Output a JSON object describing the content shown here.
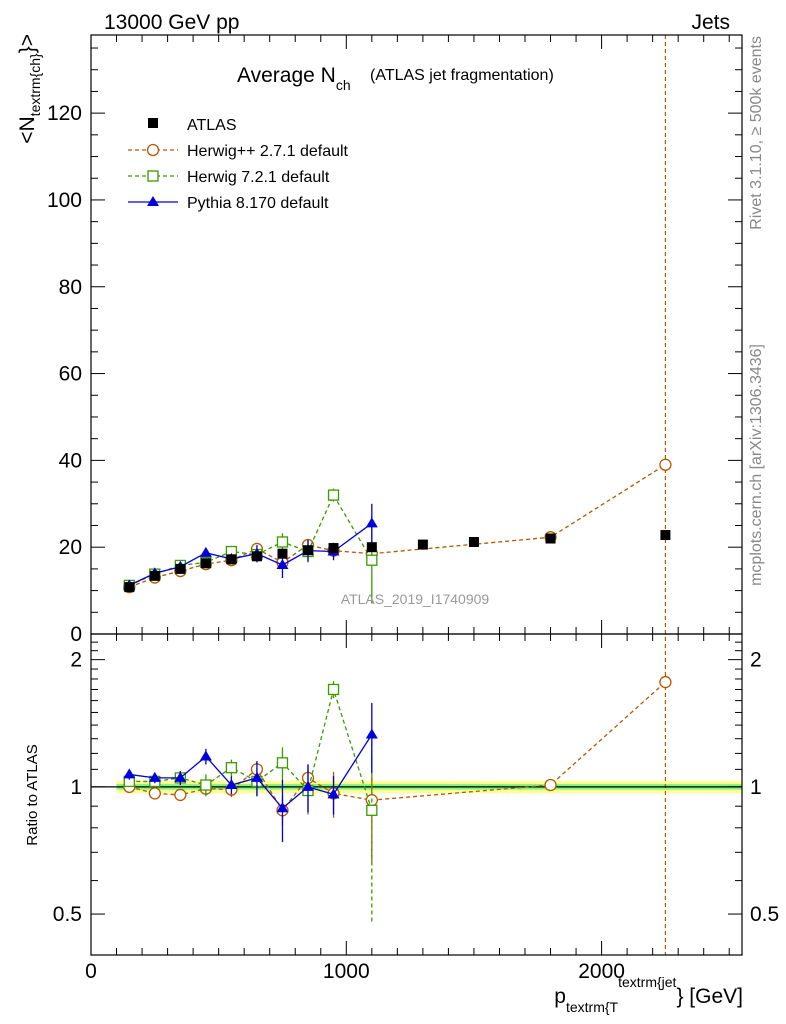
{
  "header": {
    "left": "13000 GeV pp",
    "right": "Jets"
  },
  "side_labels": {
    "rivet": "Rivet 3.1.10, ≥ 500k events",
    "mcplots": "mcplots.cern.ch [arXiv:1306.3436]"
  },
  "watermark": "ATLAS_2019_I1740909",
  "colors": {
    "data": "#000000",
    "herwigpp": "#b35900",
    "herwig7": "#3a9a00",
    "pythia": "#0000dd",
    "band_inner": "#7ff27f",
    "band_outer": "#ffff99"
  },
  "chart_data": {
    "type": "scatter",
    "title": {
      "main": "Average N",
      "sub": "ch",
      "extra": "(ATLAS jet fragmentation)"
    },
    "xlabel": {
      "p": "p",
      "sub": "textrm{T",
      "sup": "textrm{jet",
      "close": "}",
      "unit": " [GeV]"
    },
    "ylabel": {
      "pre": "<N",
      "sub": "textrm{ch}",
      "post": "}>"
    },
    "ratio_ylabel": "Ratio to ATLAS",
    "xlim": [
      0,
      2550
    ],
    "ylim": [
      0,
      138
    ],
    "ratio_ylim": [
      0.4,
      2.3
    ],
    "x_ticks": [
      0,
      1000,
      2000
    ],
    "x_tick_labels": [
      "0",
      "1000",
      "2000"
    ],
    "y_ticks": [
      0,
      20,
      40,
      60,
      80,
      100,
      120
    ],
    "y_tick_labels": [
      "0",
      "20",
      "40",
      "60",
      "80",
      "100",
      "120"
    ],
    "ratio_ticks": [
      0.5,
      1,
      2
    ],
    "ratio_tick_labels": [
      "0.5",
      "1",
      "2"
    ],
    "vertical_line_x": 2250,
    "data_band_xrange": [
      100,
      2550
    ],
    "legend": [
      "ATLAS",
      "Herwig++ 2.7.1 default",
      "Herwig 7.2.1 default",
      "Pythia 8.170 default"
    ],
    "series": [
      {
        "name": "ATLAS",
        "style": "data",
        "x": [
          150,
          250,
          350,
          450,
          550,
          650,
          750,
          850,
          950,
          1100,
          1300,
          1500,
          1800,
          2250
        ],
        "y": [
          10.8,
          13.4,
          15.0,
          16.3,
          17.2,
          17.9,
          18.5,
          19.3,
          19.8,
          20.0,
          20.6,
          21.2,
          22.0,
          22.8
        ]
      },
      {
        "name": "Herwig++ 2.7.1 default",
        "style": "herwigpp",
        "x": [
          150,
          250,
          350,
          450,
          550,
          650,
          750,
          850,
          950,
          1100,
          1800,
          2250
        ],
        "y": [
          10.8,
          13.0,
          14.5,
          16.1,
          17.0,
          19.6,
          16.5,
          20.5,
          19.2,
          18.5,
          22.3,
          39.0
        ],
        "err": [
          0.5,
          0.5,
          0.6,
          0.7,
          0.7,
          1.0,
          1.2,
          1.3,
          1.5,
          2.0,
          0.5,
          0.6
        ],
        "ratio": [
          1.0,
          0.965,
          0.957,
          0.99,
          0.985,
          1.1,
          0.88,
          1.05,
          0.965,
          0.93,
          1.01,
          1.77
        ],
        "ratio_err": [
          0.03,
          0.03,
          0.03,
          0.03,
          0.04,
          0.05,
          0.07,
          0.08,
          0.12,
          0.27,
          0.02,
          0.02
        ]
      },
      {
        "name": "Herwig 7.2.1 default",
        "style": "herwig7",
        "x": [
          150,
          250,
          350,
          450,
          550,
          650,
          750,
          850,
          950,
          1100
        ],
        "y": [
          11.2,
          13.8,
          15.8,
          16.5,
          19.0,
          18.3,
          21.2,
          19.0,
          32.0,
          17.0
        ],
        "err": [
          0.5,
          0.6,
          0.8,
          1.2,
          1.0,
          1.5,
          2.0,
          2.5,
          1.5,
          10.0
        ],
        "ratio": [
          1.03,
          1.03,
          1.05,
          1.01,
          1.11,
          1.03,
          1.14,
          0.98,
          1.7,
          0.88
        ],
        "ratio_err": [
          0.03,
          0.03,
          0.04,
          0.06,
          0.05,
          0.08,
          0.1,
          0.12,
          0.08,
          0.4
        ]
      },
      {
        "name": "Pythia 8.170 default",
        "style": "pythia",
        "x": [
          150,
          250,
          350,
          450,
          550,
          650,
          750,
          850,
          950,
          1100
        ],
        "y": [
          11.2,
          14.0,
          15.5,
          18.7,
          17.3,
          18.5,
          15.9,
          19.2,
          19.0,
          25.5
        ],
        "err": [
          0.5,
          0.6,
          0.7,
          0.9,
          0.9,
          2.0,
          3.0,
          2.5,
          2.0,
          4.5
        ],
        "ratio": [
          1.07,
          1.05,
          1.05,
          1.18,
          1.01,
          1.05,
          0.89,
          1.0,
          0.96,
          1.33
        ],
        "ratio_err": [
          0.03,
          0.03,
          0.04,
          0.05,
          0.05,
          0.1,
          0.15,
          0.13,
          0.1,
          0.25
        ]
      }
    ]
  }
}
